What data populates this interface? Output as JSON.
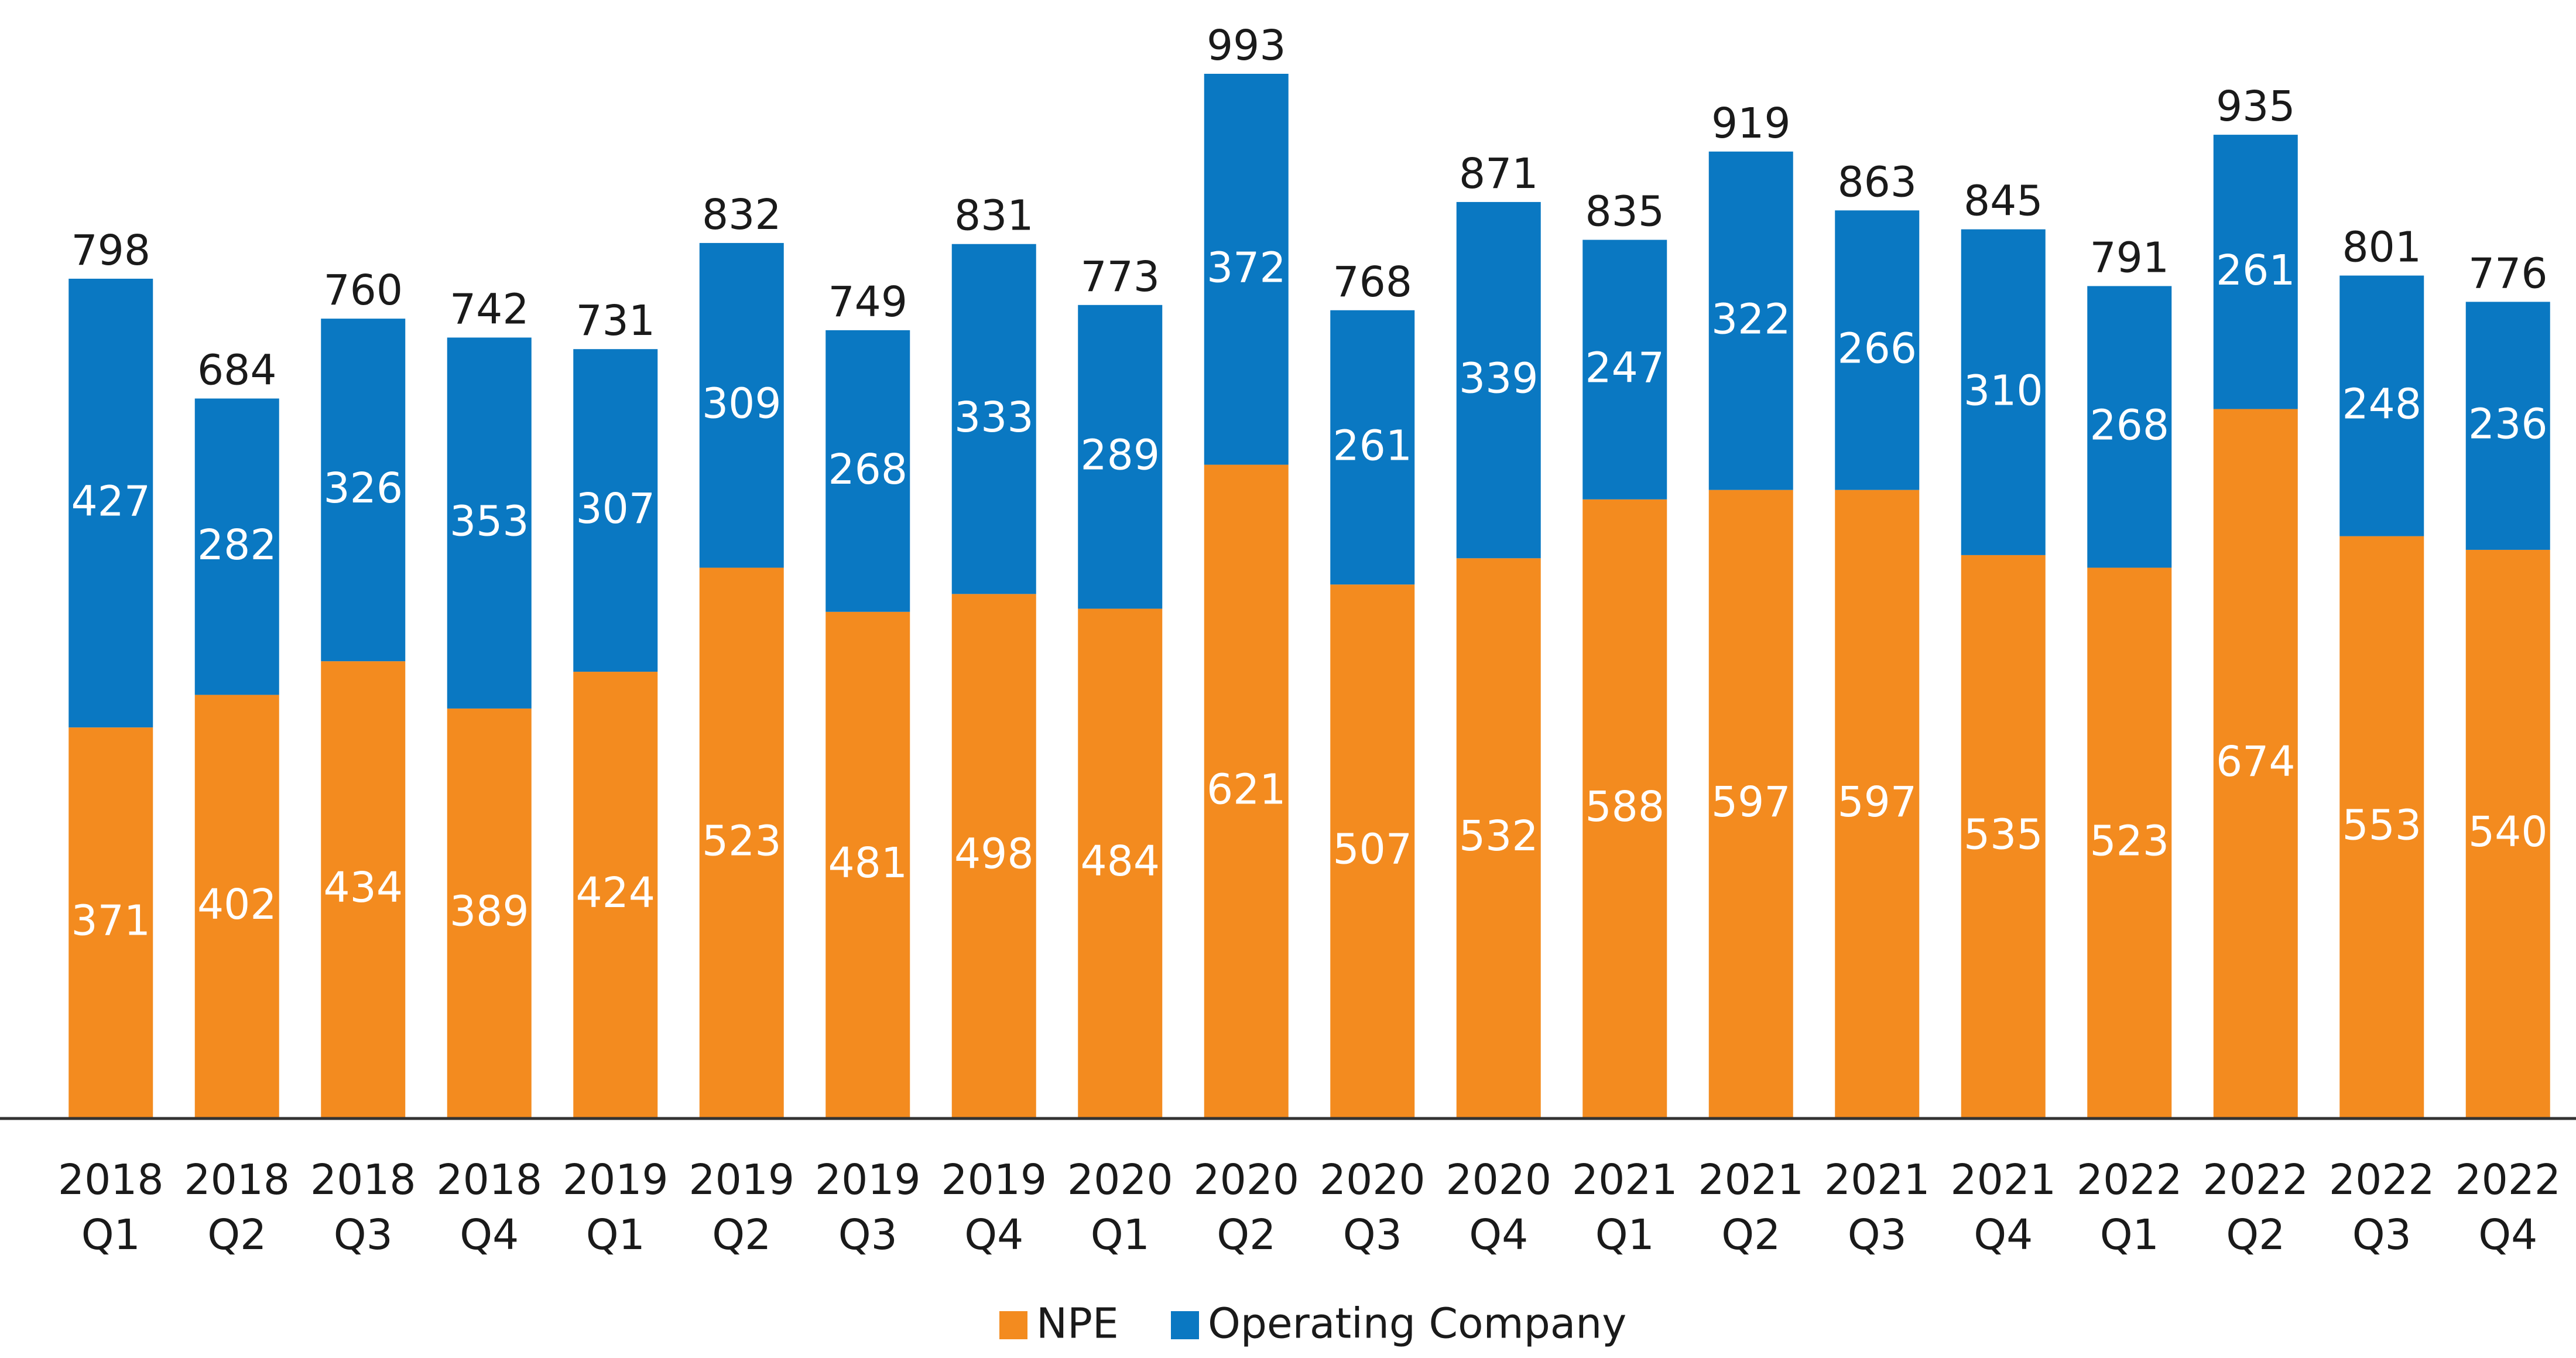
{
  "chart_data": {
    "type": "bar",
    "stacked": true,
    "categories": [
      [
        "2018",
        "Q1"
      ],
      [
        "2018",
        "Q2"
      ],
      [
        "2018",
        "Q3"
      ],
      [
        "2018",
        "Q4"
      ],
      [
        "2019",
        "Q1"
      ],
      [
        "2019",
        "Q2"
      ],
      [
        "2019",
        "Q3"
      ],
      [
        "2019",
        "Q4"
      ],
      [
        "2020",
        "Q1"
      ],
      [
        "2020",
        "Q2"
      ],
      [
        "2020",
        "Q3"
      ],
      [
        "2020",
        "Q4"
      ],
      [
        "2021",
        "Q1"
      ],
      [
        "2021",
        "Q2"
      ],
      [
        "2021",
        "Q3"
      ],
      [
        "2021",
        "Q4"
      ],
      [
        "2022",
        "Q1"
      ],
      [
        "2022",
        "Q2"
      ],
      [
        "2022",
        "Q3"
      ],
      [
        "2022",
        "Q4"
      ]
    ],
    "series": [
      {
        "name": "NPE",
        "color": "#F38B1F",
        "values": [
          371,
          402,
          434,
          389,
          424,
          523,
          481,
          498,
          484,
          621,
          507,
          532,
          588,
          597,
          597,
          535,
          523,
          674,
          553,
          540
        ]
      },
      {
        "name": "Operating Company",
        "color": "#0A78C2",
        "values": [
          427,
          282,
          326,
          353,
          307,
          309,
          268,
          333,
          289,
          372,
          261,
          339,
          247,
          322,
          266,
          310,
          268,
          261,
          248,
          236
        ]
      }
    ],
    "totals": [
      798,
      684,
      760,
      742,
      731,
      832,
      749,
      831,
      773,
      993,
      768,
      871,
      835,
      919,
      863,
      845,
      791,
      935,
      801,
      776
    ],
    "ylim": [
      0,
      1000
    ],
    "grid": false,
    "legend": "bottom-center",
    "title": "",
    "xlabel": "",
    "ylabel": ""
  }
}
